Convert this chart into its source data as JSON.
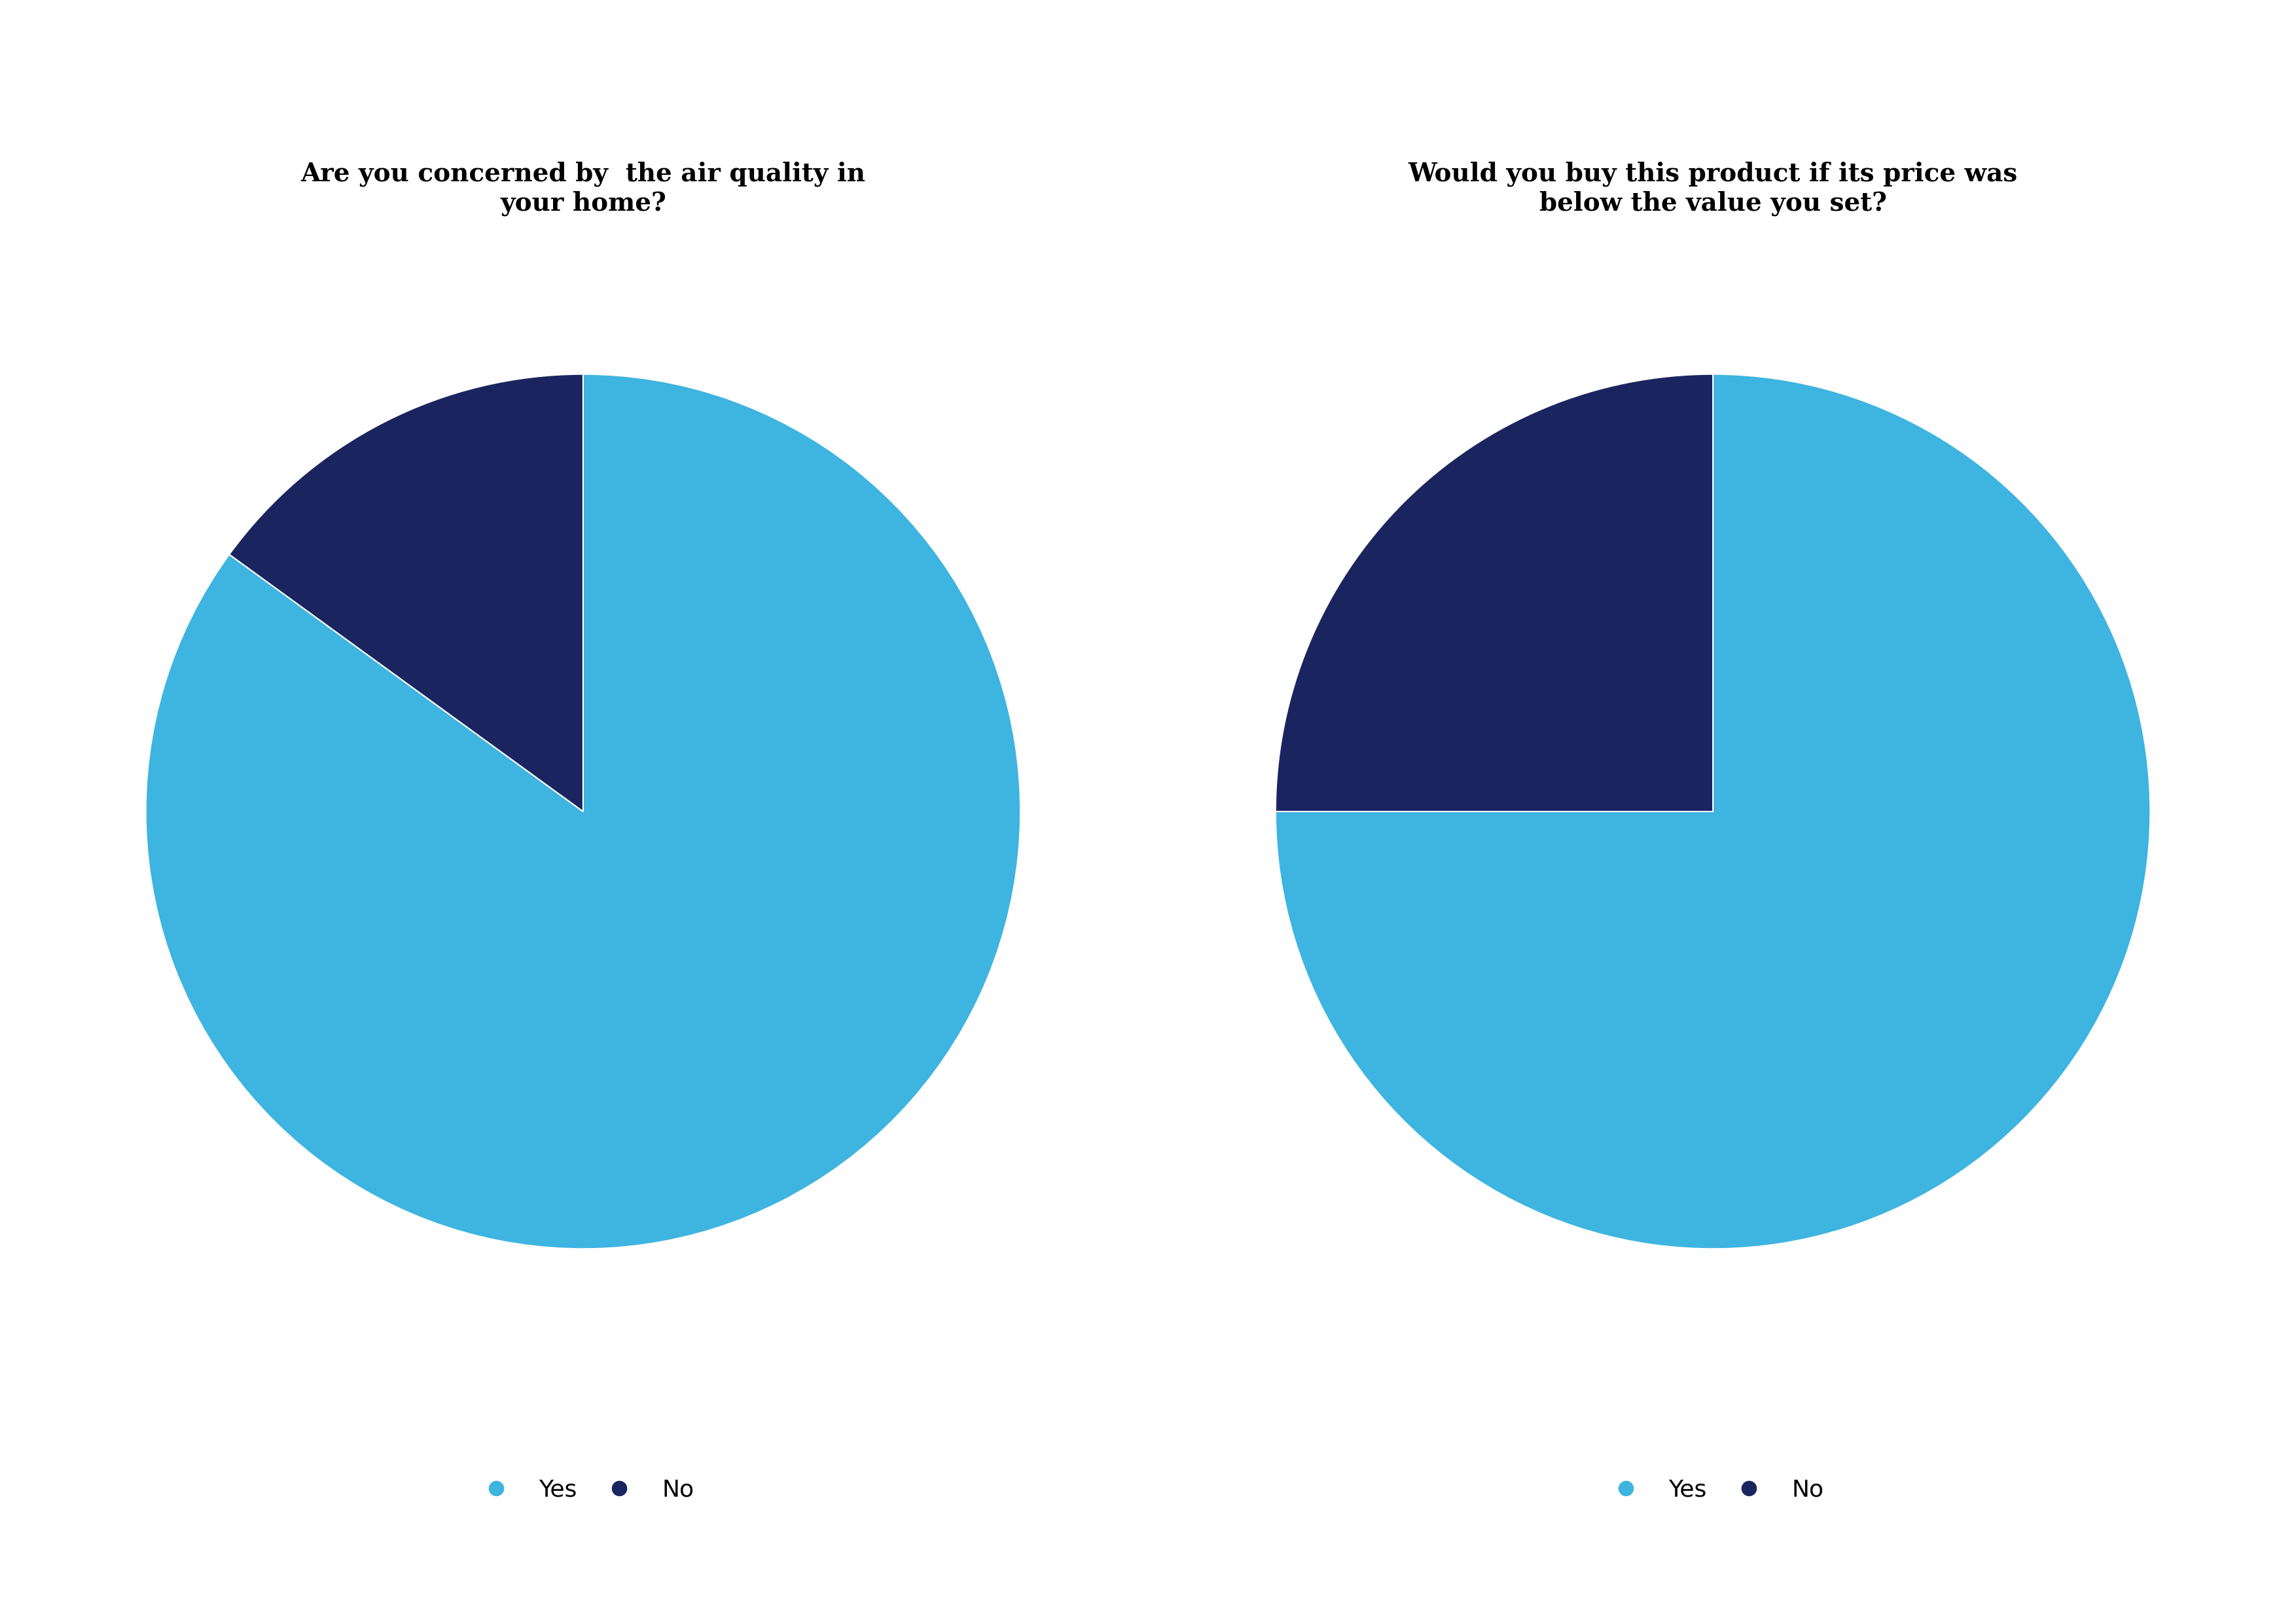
{
  "chart1": {
    "title": "Are you concerned by  the air quality in\nyour home?",
    "values": [
      85,
      15
    ],
    "colors": [
      "#3eb4e0",
      "#1a2560"
    ],
    "labels": [
      "Yes",
      "No"
    ],
    "startangle": 90
  },
  "chart2": {
    "title": "Would you buy this product if its price was\nbelow the value you set?",
    "values": [
      75,
      25
    ],
    "colors": [
      "#3eb4e0",
      "#1a2560"
    ],
    "labels": [
      "Yes",
      "No"
    ],
    "startangle": 90
  },
  "background_color": "#ffffff",
  "title_fontsize": 28,
  "legend_fontsize": 26,
  "title_color": "#000000"
}
